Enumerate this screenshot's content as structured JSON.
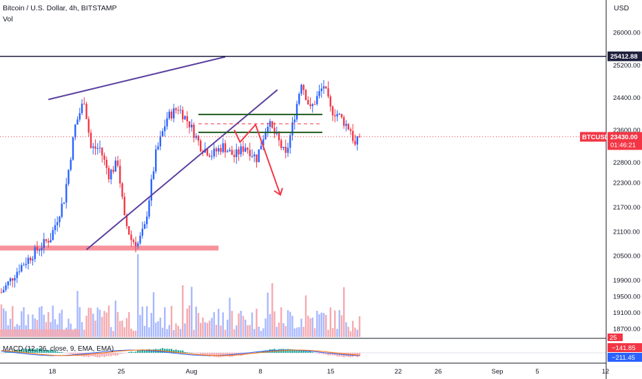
{
  "header": {
    "symbol_line": "Bitcoin / U.S. Dollar, 4h, BITSTAMP",
    "volume_label": "Vol"
  },
  "colors": {
    "up": "#2962ff",
    "down": "#f23645",
    "up_vol": "#a8b8ff",
    "down_vol": "#f5a9b0",
    "trendline": "#5b3f9e",
    "support_zone": "#f7929a",
    "box_line": "#1e5a1e",
    "resistance": "#1d1f3c",
    "arrow": "#f23645"
  },
  "chart_data": {
    "type": "candlestick",
    "symbol": "BTCUSD",
    "interval": "4h",
    "exchange": "BITSTAMP",
    "currency": "USD",
    "y_range": [
      18500,
      26800
    ],
    "y_ticks": [
      26000,
      25200,
      24400,
      23600,
      22800,
      22300,
      21700,
      21100,
      20500,
      19900,
      19500,
      19100,
      18700
    ],
    "y_tick_labels": [
      "26000.00",
      "25200.00",
      "24400.00",
      "23600.00",
      "22800.00",
      "22300.00",
      "21700.00",
      "21100.00",
      "20500.00",
      "19900.00",
      "19500.00",
      "19100.00",
      "18700.00"
    ],
    "x_labels": [
      "18",
      "25",
      "Aug",
      "8",
      "15",
      "22",
      "26",
      "Sep",
      "5",
      "12"
    ],
    "price_path_anchors": [
      [
        0,
        19600
      ],
      [
        8,
        20200
      ],
      [
        16,
        20650
      ],
      [
        22,
        20950
      ],
      [
        28,
        21900
      ],
      [
        33,
        23700
      ],
      [
        37,
        24350
      ],
      [
        40,
        23150
      ],
      [
        44,
        23150
      ],
      [
        48,
        22500
      ],
      [
        52,
        22800
      ],
      [
        55,
        21400
      ],
      [
        58,
        20900
      ],
      [
        61,
        20800
      ],
      [
        64,
        21200
      ],
      [
        69,
        23000
      ],
      [
        74,
        23900
      ],
      [
        79,
        24150
      ],
      [
        84,
        23750
      ],
      [
        89,
        23200
      ],
      [
        94,
        23000
      ],
      [
        99,
        23200
      ],
      [
        104,
        22950
      ],
      [
        109,
        23200
      ],
      [
        114,
        22900
      ],
      [
        119,
        23800
      ],
      [
        124,
        23300
      ],
      [
        127,
        22950
      ],
      [
        130,
        23700
      ],
      [
        134,
        24800
      ],
      [
        138,
        24100
      ],
      [
        141,
        24400
      ],
      [
        144,
        24700
      ],
      [
        147,
        24100
      ],
      [
        150,
        24000
      ],
      [
        153,
        23800
      ],
      [
        156,
        23600
      ],
      [
        158,
        23200
      ],
      [
        160,
        23430
      ]
    ],
    "volume": {
      "series": "Vol",
      "relative": true
    },
    "last_price_label": "BTCUSD",
    "last_price_value": "23430.00",
    "last_price_countdown": "01:46:21",
    "last_price": 23430,
    "resistance_level": 25412.88,
    "resistance_label": "25412.88",
    "macd": {
      "label": "MACD (12, 26, close, 9, EMA, EMA)",
      "value_a": "−141.85",
      "value_b": "−211.45",
      "top_value": "25"
    },
    "drawings": {
      "upper_trendline": [
        [
          21,
          24350
        ],
        [
          100,
          25400
        ]
      ],
      "lower_trendline": [
        [
          38,
          20650
        ],
        [
          111,
          24020
        ]
      ],
      "support_zone": {
        "from": 0,
        "to": 97,
        "low": 20630,
        "high": 20750
      },
      "box_upper_line": {
        "from": 88,
        "to": 125,
        "price": 23980
      },
      "box_lower_line": {
        "from": 88,
        "to": 125,
        "price": 23540
      },
      "box_mid_dashed": {
        "from": 88,
        "to": 125,
        "price": 23750
      },
      "projection_arrow": [
        [
          104,
          23600
        ],
        [
          106,
          23300
        ],
        [
          108,
          23730
        ],
        [
          116,
          22000
        ]
      ]
    },
    "grid": false,
    "legend": "top-left"
  }
}
